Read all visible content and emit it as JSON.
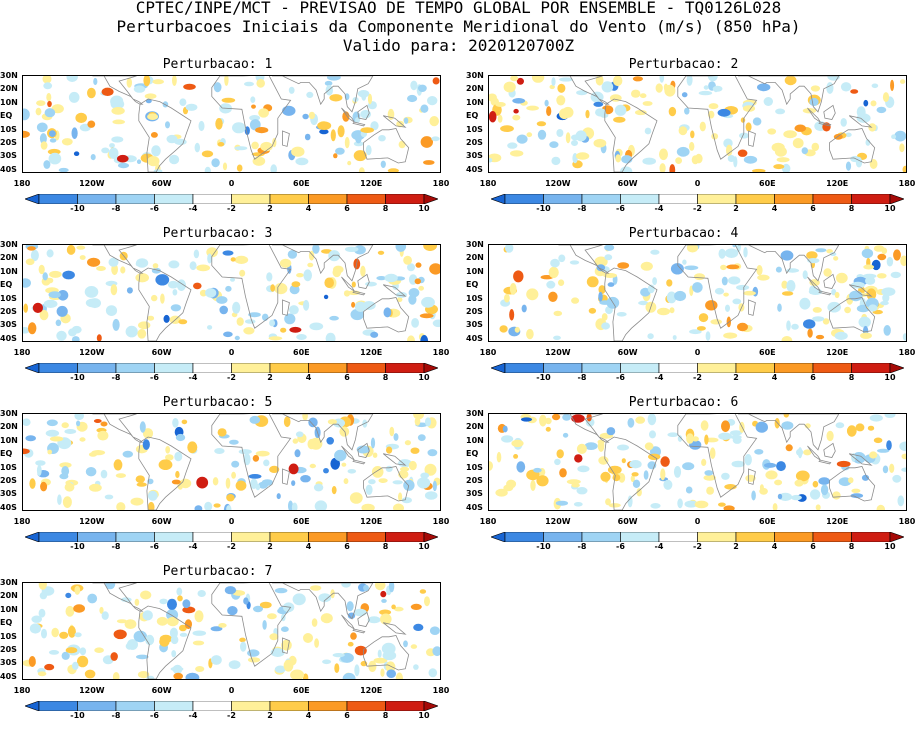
{
  "title": {
    "line1": "CPTEC/INPE/MCT - PREVISAO DE TEMPO GLOBAL POR ENSEMBLE - TQ0126L028",
    "line2": "Perturbacoes Iniciais da Componente Meridional do Vento (m/s) (850 hPa)",
    "line3": "Valido para: 2020120700Z"
  },
  "lat_labels": [
    "30N",
    "20N",
    "10N",
    "EQ",
    "10S",
    "20S",
    "30S",
    "40S"
  ],
  "lon_labels": [
    "180",
    "120W",
    "60W",
    "0",
    "60E",
    "120E",
    "180"
  ],
  "colorbar": {
    "labels": [
      "-10",
      "-8",
      "-6",
      "-4",
      "-2",
      "2",
      "4",
      "6",
      "8",
      "10"
    ],
    "colors": [
      "#1764d3",
      "#3c88e3",
      "#77b4ee",
      "#9fd4f4",
      "#c6ecf7",
      "#ffffff",
      "#fff099",
      "#ffcc4a",
      "#fb9a25",
      "#ee5a14",
      "#cf1d12",
      "#a50a07"
    ]
  },
  "panels": [
    {
      "title": "Perturbacao: 1"
    },
    {
      "title": "Perturbacao: 2"
    },
    {
      "title": "Perturbacao: 3"
    },
    {
      "title": "Perturbacao: 4"
    },
    {
      "title": "Perturbacao: 5"
    },
    {
      "title": "Perturbacao: 6"
    },
    {
      "title": "Perturbacao: 7"
    }
  ]
}
